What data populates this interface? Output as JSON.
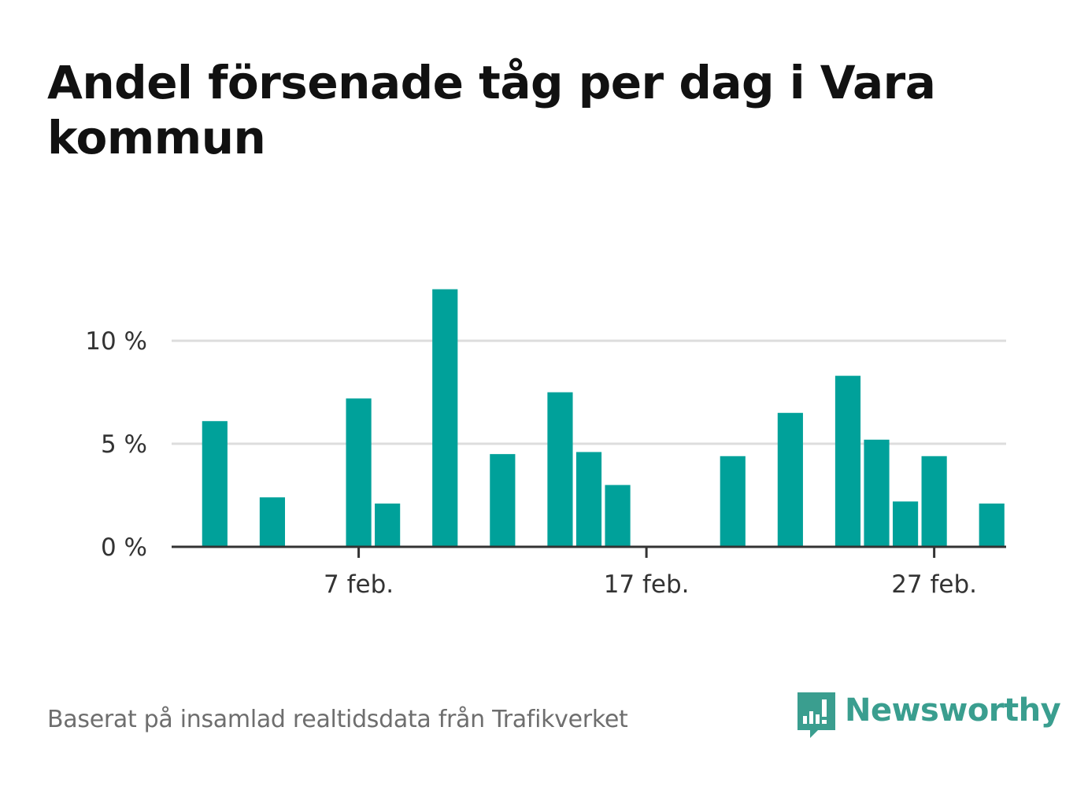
{
  "title": "Andel försenade tåg per dag i Vara kommun",
  "footer": {
    "source": "Baserat på insamlad realtidsdata från Trafikverket"
  },
  "logo": {
    "text": "Newsworthy",
    "icon": "newsworthy-chart-bubble-icon",
    "color": "#3a9e8f"
  },
  "chart_data": {
    "type": "bar",
    "title": "Andel försenade tåg per dag i Vara kommun",
    "xlabel": "",
    "ylabel": "",
    "bar_color": "#00a19a",
    "x_unit": "feb",
    "ylim": [
      0,
      12.6
    ],
    "xlim": [
      0.5,
      29.5
    ],
    "yticks": [
      {
        "value": 0,
        "label": "0 %"
      },
      {
        "value": 5,
        "label": "5 %"
      },
      {
        "value": 10,
        "label": "10 %"
      }
    ],
    "xticks": [
      {
        "value": 7,
        "label": "7 feb."
      },
      {
        "value": 17,
        "label": "17 feb."
      },
      {
        "value": 27,
        "label": "27 feb."
      }
    ],
    "grid": true,
    "x": [
      2,
      4,
      7,
      8,
      10,
      12,
      14,
      15,
      16,
      20,
      22,
      24,
      25,
      26,
      27,
      29
    ],
    "values": [
      6.1,
      2.4,
      7.2,
      2.1,
      12.5,
      4.5,
      7.5,
      4.6,
      3.0,
      4.4,
      6.5,
      8.3,
      5.2,
      2.2,
      4.4,
      2.1
    ]
  }
}
